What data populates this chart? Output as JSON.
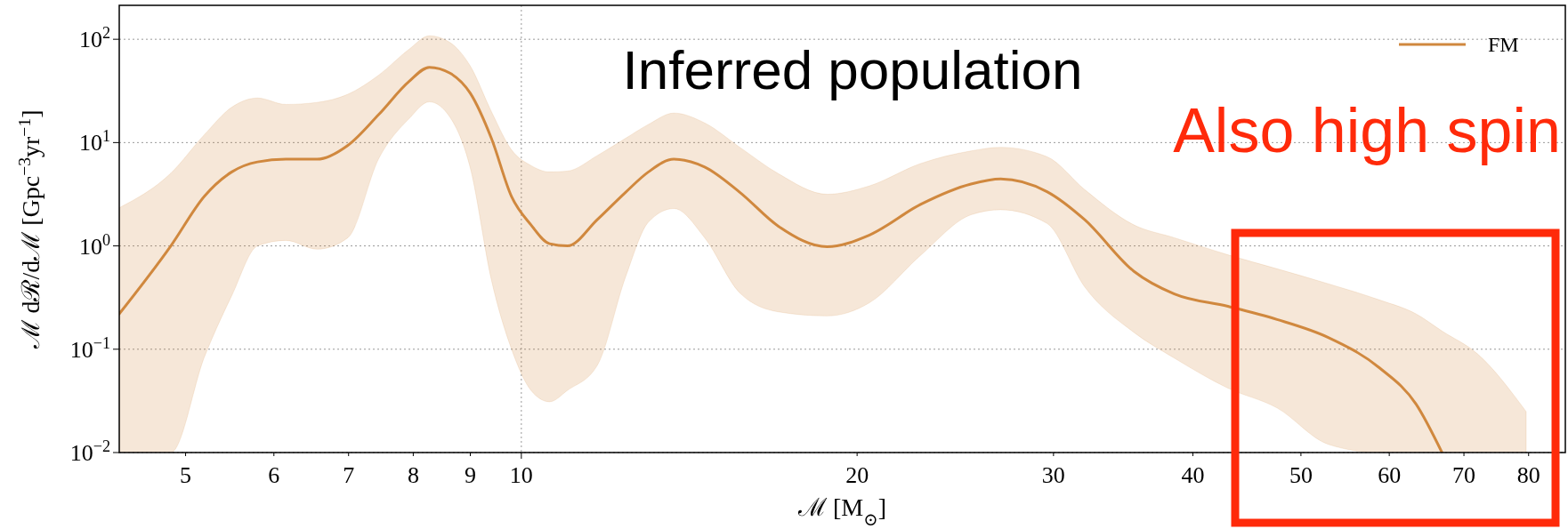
{
  "chart_data": {
    "type": "line",
    "xlabel": "ℳ [M$_{⊙}$]",
    "ylabel": "ℳ dℛ/dℳ [Gpc$^{−3}$yr$^{−1}$]",
    "annotations": [
      "Inferred population",
      "Also high spin"
    ],
    "log": "xy",
    "grid": true,
    "legend": "top right",
    "line_style": "solid",
    "marker": "none",
    "xlim": [
      4.36,
      86.3
    ],
    "xticks": [
      5,
      6,
      7,
      8,
      9,
      10,
      20,
      30,
      40,
      50,
      60,
      70,
      80
    ],
    "ylim": [
      0.01,
      213
    ],
    "yticks": [
      {
        "value": 0.01,
        "label": "10$^{−2}$"
      },
      {
        "value": 0.1,
        "label": "10$^{−1}$"
      },
      {
        "value": 1,
        "label": "10$^{0}$"
      },
      {
        "value": 10,
        "label": "10$^{1}$"
      },
      {
        "value": 100,
        "label": "10$^{2}$"
      }
    ],
    "series": [
      {
        "name": "FM",
        "color": "#d0883e",
        "x": [
          4.36,
          4.85,
          5.2,
          5.5,
          5.8,
          6.15,
          6.56,
          6.99,
          7.45,
          7.93,
          8.27,
          8.63,
          9.0,
          9.4,
          9.8,
          10.2,
          10.6,
          11.0,
          11.7,
          12.4,
          13.0,
          13.7,
          14.6,
          15.7,
          17.0,
          18.8,
          20.5,
          22.8,
          25.3,
          26.9,
          29.6,
          32,
          35.4,
          38.5,
          43,
          47.6,
          52.9,
          58.8,
          63.4,
          66.9,
          72,
          79.6
        ],
        "values": [
          0.22,
          1.0,
          3.04,
          5.2,
          6.5,
          6.9,
          6.9,
          9.4,
          18.7,
          39,
          53.6,
          47,
          30,
          11,
          3.0,
          1.6,
          1.05,
          1.0,
          1.8,
          3.3,
          5.2,
          6.9,
          5.8,
          3.3,
          1.55,
          0.98,
          1.27,
          2.52,
          3.97,
          4.45,
          3.35,
          1.79,
          0.57,
          0.343,
          0.26,
          0.194,
          0.13,
          0.066,
          0.0295,
          0.01,
          null,
          null
        ],
        "upper": [
          2.34,
          5.06,
          12,
          22,
          27,
          23.4,
          24.5,
          29.4,
          45,
          80,
          108,
          93,
          55,
          20,
          8.5,
          6.0,
          5.2,
          5.3,
          7.5,
          11,
          15,
          19.3,
          15.5,
          9,
          5,
          3.16,
          3.8,
          6.27,
          8.3,
          9.0,
          7.3,
          3.5,
          1.6,
          1.2,
          0.82,
          0.6,
          0.43,
          0.3,
          0.22,
          0.15,
          0.09,
          0.0249
        ],
        "lower": [
          0.01,
          0.01,
          0.085,
          0.33,
          1.0,
          1.13,
          0.93,
          1.2,
          7,
          17,
          24.8,
          17.6,
          5.67,
          0.47,
          0.1,
          0.04,
          0.031,
          0.04,
          0.07,
          0.5,
          1.7,
          2.3,
          1.2,
          0.35,
          0.23,
          0.21,
          0.28,
          0.81,
          2.0,
          2.24,
          1.65,
          0.4,
          0.146,
          0.082,
          0.042,
          0.027,
          0.012,
          0.01,
          0.01,
          0.01,
          0.01,
          0.01
        ]
      }
    ]
  }
}
